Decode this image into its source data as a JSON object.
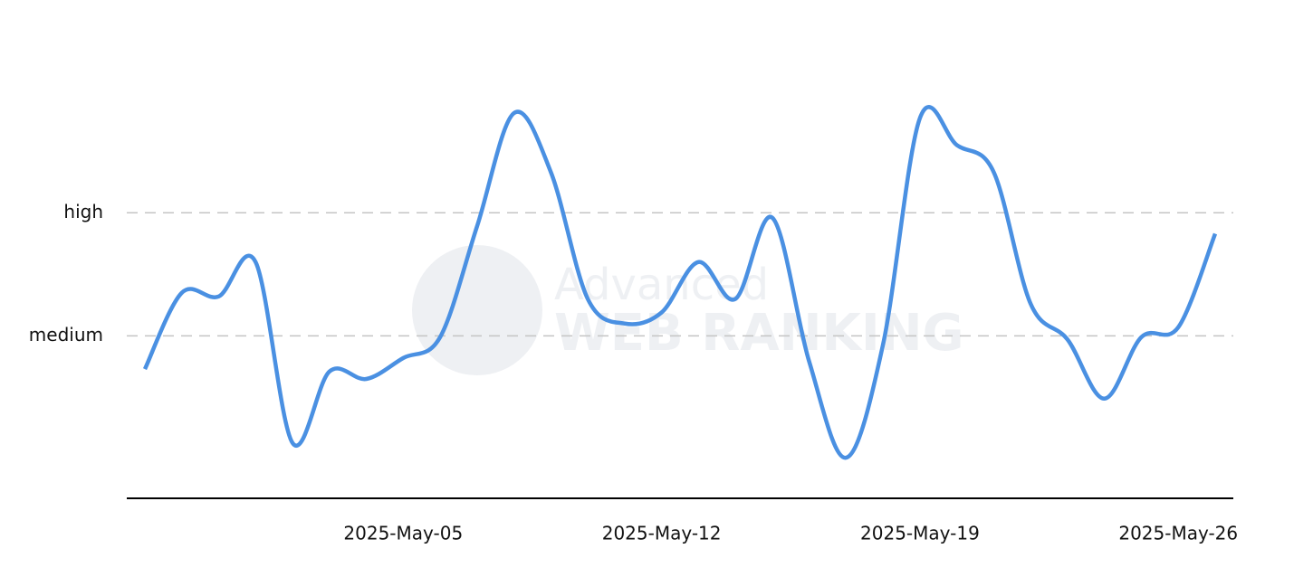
{
  "chart_data": {
    "type": "line",
    "watermark": [
      "Advanced",
      "WEB RANKING"
    ],
    "x": [
      "2025-04-28",
      "2025-04-29",
      "2025-04-30",
      "2025-05-01",
      "2025-05-02",
      "2025-05-03",
      "2025-05-04",
      "2025-05-05",
      "2025-05-06",
      "2025-05-07",
      "2025-05-08",
      "2025-05-09",
      "2025-05-10",
      "2025-05-11",
      "2025-05-12",
      "2025-05-13",
      "2025-05-14",
      "2025-05-15",
      "2025-05-16",
      "2025-05-17",
      "2025-05-18",
      "2025-05-19",
      "2025-05-20",
      "2025-05-21",
      "2025-05-22",
      "2025-05-23",
      "2025-05-24",
      "2025-05-25",
      "2025-05-26",
      "2025-05-27"
    ],
    "series": [
      {
        "color": "#4a90e2",
        "values": [
          0.73,
          1.35,
          1.32,
          1.6,
          0.13,
          0.71,
          0.65,
          0.82,
          0.99,
          1.89,
          2.81,
          2.33,
          1.3,
          1.1,
          1.19,
          1.6,
          1.3,
          1.96,
          0.79,
          0.01,
          0.93,
          2.77,
          2.55,
          2.33,
          1.26,
          0.97,
          0.49,
          0.99,
          1.07,
          1.83
        ]
      }
    ],
    "xlim": [
      "2025-04-28",
      "2025-05-27"
    ],
    "xticks": [
      {
        "value": "2025-05-05",
        "label": "2025-May-05"
      },
      {
        "value": "2025-05-12",
        "label": "2025-May-12"
      },
      {
        "value": "2025-05-19",
        "label": "2025-May-19"
      },
      {
        "value": "2025-05-26",
        "label": "2025-May-26"
      }
    ],
    "ylim": [
      -0.32,
      3.2
    ],
    "yticks": [
      {
        "value": 1,
        "label": "medium"
      },
      {
        "value": 2,
        "label": "high"
      }
    ],
    "grid": true
  }
}
